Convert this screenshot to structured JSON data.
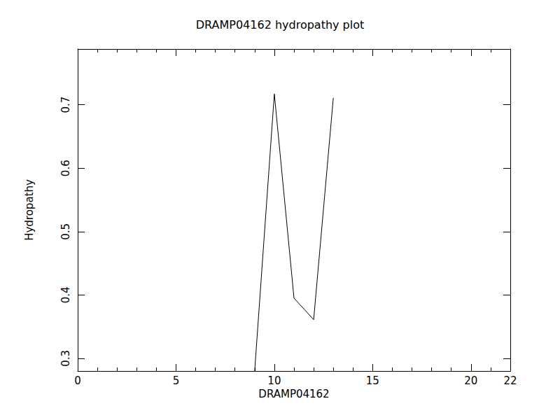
{
  "chart_data": {
    "type": "line",
    "title": "DRAMP04162 hydropathy plot",
    "x_label": "DRAMP04162",
    "y_label": "Hydropathy",
    "x": [
      9,
      10,
      11,
      12,
      13
    ],
    "values": [
      0.28,
      0.717,
      0.395,
      0.361,
      0.711
    ],
    "color": "#000000",
    "xlim": [
      0,
      22
    ],
    "xticks": [
      0,
      5,
      10,
      15,
      20
    ],
    "ylim": [
      0.28,
      0.788
    ],
    "yticks": [
      0.3,
      0.4,
      0.5,
      0.6,
      0.7
    ],
    "grid": false
  }
}
